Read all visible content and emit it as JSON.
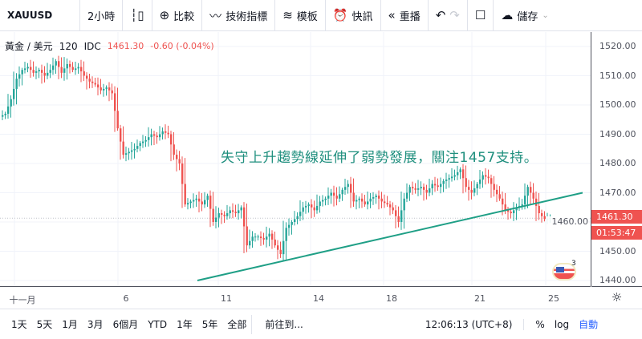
{
  "toolbar": {
    "symbol": "XAUUSD",
    "interval": "2小時",
    "compare": "比較",
    "indicators": "技術指標",
    "templates": "模板",
    "alert": "快訊",
    "replay": "重播",
    "save": "儲存"
  },
  "legend": {
    "name": "黃金 / 美元",
    "interval": "120",
    "source": "IDC",
    "price": "1461.30",
    "change": "-0.60 (-0.04%)"
  },
  "annotation": "失守上升趨勢線延伸了弱勢發展，關注1457支持。",
  "price_tag": "1461.30",
  "countdown": "01:53:47",
  "event_count": "3",
  "bottom": {
    "ranges": [
      "1天",
      "5天",
      "1月",
      "3月",
      "6個月",
      "YTD",
      "1年",
      "5年",
      "全部"
    ],
    "goto": "前往到...",
    "time": "12:06:13 (UTC+8)",
    "percent": "%",
    "log": "log",
    "auto": "自動"
  },
  "colors": {
    "up": "#26a69a",
    "down": "#ef5350",
    "trendline": "#1f9f86",
    "auto": "#2962ff"
  },
  "chart_data": {
    "type": "candlestick",
    "y_ticks": [
      "1520.00",
      "1510.00",
      "1500.00",
      "1490.00",
      "1480.00",
      "1470.00",
      "1460.00",
      "1450.00",
      "1440.00"
    ],
    "ylim": [
      1437,
      1527
    ],
    "x_ticks": [
      "十一月",
      "6",
      "11",
      "14",
      "18",
      "21",
      "25"
    ],
    "closes": [
      1497,
      1502,
      1509,
      1512,
      1513,
      1511,
      1512,
      1510,
      1512,
      1515,
      1511,
      1514,
      1512,
      1513,
      1510,
      1508,
      1507,
      1505,
      1506,
      1504,
      1492,
      1483,
      1484,
      1485,
      1487,
      1488,
      1490,
      1489,
      1491,
      1490,
      1483,
      1480,
      1466,
      1467,
      1468,
      1466,
      1469,
      1460,
      1463,
      1462,
      1464,
      1463,
      1465,
      1452,
      1455,
      1455,
      1454,
      1456,
      1452,
      1449,
      1458,
      1460,
      1462,
      1465,
      1466,
      1464,
      1467,
      1468,
      1470,
      1468,
      1471,
      1473,
      1467,
      1468,
      1466,
      1468,
      1469,
      1467,
      1466,
      1464,
      1460,
      1468,
      1472,
      1471,
      1472,
      1470,
      1473,
      1472,
      1474,
      1475,
      1476,
      1478,
      1472,
      1470,
      1473,
      1476,
      1475,
      1471,
      1468,
      1464,
      1463,
      1465,
      1466,
      1472,
      1468,
      1463,
      1461,
      1461.3
    ],
    "trendline": {
      "from": 1440,
      "to": 1470
    }
  }
}
